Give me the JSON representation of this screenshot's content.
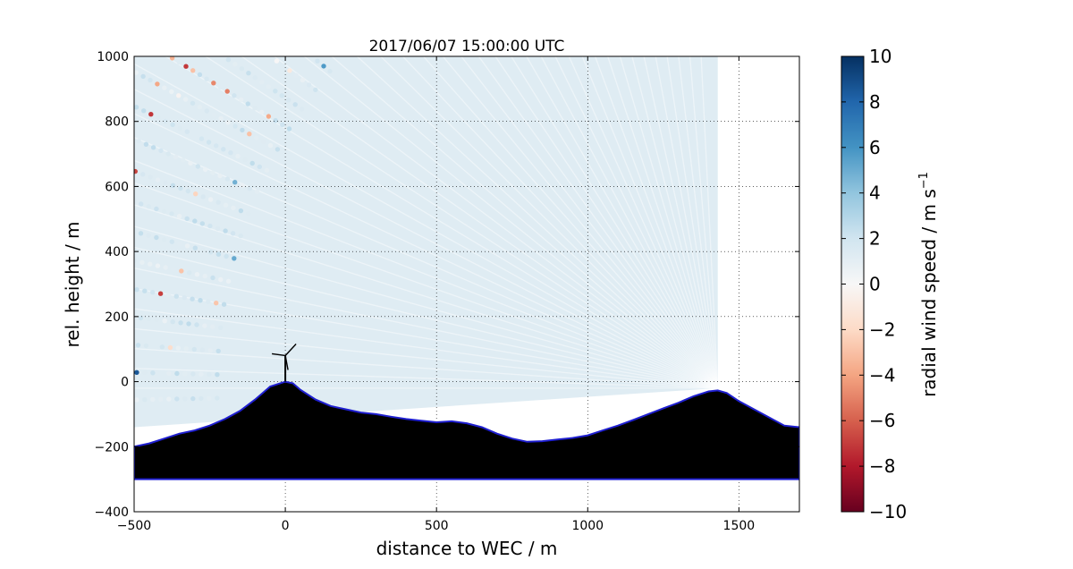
{
  "chart_data": {
    "type": "scatter",
    "title": "2017/06/07 15:00:00 UTC",
    "xlabel": "distance to WEC / m",
    "ylabel": "rel. height / m",
    "xlim": [
      -500,
      1700
    ],
    "ylim": [
      -400,
      1000
    ],
    "xticks": [
      -500,
      0,
      500,
      1000,
      1500
    ],
    "yticks": [
      -400,
      -200,
      0,
      200,
      400,
      600,
      800,
      1000
    ],
    "xtick_labels": [
      "−500",
      "0",
      "500",
      "1000",
      "1500"
    ],
    "ytick_labels": [
      "−400",
      "−200",
      "0",
      "200",
      "400",
      "600",
      "800",
      "1000"
    ],
    "grid": true,
    "scan_origin": [
      1430,
      -20
    ],
    "scan_max_x": 1430,
    "ground_floor": -300,
    "terrain_profile": {
      "x": [
        -500,
        -450,
        -400,
        -350,
        -300,
        -250,
        -200,
        -150,
        -100,
        -50,
        0,
        25,
        50,
        100,
        150,
        200,
        250,
        300,
        350,
        400,
        450,
        500,
        550,
        600,
        650,
        700,
        750,
        800,
        850,
        900,
        950,
        1000,
        1050,
        1100,
        1150,
        1200,
        1250,
        1300,
        1350,
        1400,
        1430,
        1460,
        1500,
        1550,
        1600,
        1650,
        1700
      ],
      "y": [
        -200,
        -190,
        -175,
        -160,
        -150,
        -135,
        -115,
        -90,
        -55,
        -15,
        0,
        -5,
        -25,
        -55,
        -75,
        -85,
        -95,
        -100,
        -108,
        -115,
        -120,
        -125,
        -122,
        -128,
        -140,
        -160,
        -175,
        -185,
        -183,
        -178,
        -173,
        -165,
        -150,
        -135,
        -118,
        -100,
        -82,
        -65,
        -45,
        -30,
        -27,
        -35,
        -60,
        -85,
        -110,
        -135,
        -140
      ]
    },
    "turbine": {
      "x": 0,
      "hub_height": 80
    },
    "colorbar": {
      "label": "radial wind speed / m s",
      "label_superscript": "−1",
      "range": [
        -10,
        10
      ],
      "colormap": "RdBu",
      "ticks": [
        10,
        8,
        6,
        4,
        2,
        0,
        -2,
        -4,
        -6,
        -8,
        -10
      ],
      "tick_labels": [
        "10",
        "8",
        "6",
        "4",
        "2",
        "0",
        "−2",
        "−4",
        "−6",
        "−8",
        "−10"
      ],
      "stops": [
        {
          "v": -10,
          "c": "#67001f"
        },
        {
          "v": -8,
          "c": "#b2182b"
        },
        {
          "v": -6,
          "c": "#d6604d"
        },
        {
          "v": -4,
          "c": "#f4a582"
        },
        {
          "v": -2,
          "c": "#fddbc7"
        },
        {
          "v": 0,
          "c": "#f7f7f7"
        },
        {
          "v": 2,
          "c": "#d1e5f0"
        },
        {
          "v": 4,
          "c": "#92c5de"
        },
        {
          "v": 6,
          "c": "#4393c3"
        },
        {
          "v": 8,
          "c": "#2166ac"
        },
        {
          "v": 10,
          "c": "#053061"
        }
      ]
    },
    "far_field_speed": 1.6,
    "near_field_noise_fraction": 0.55
  }
}
